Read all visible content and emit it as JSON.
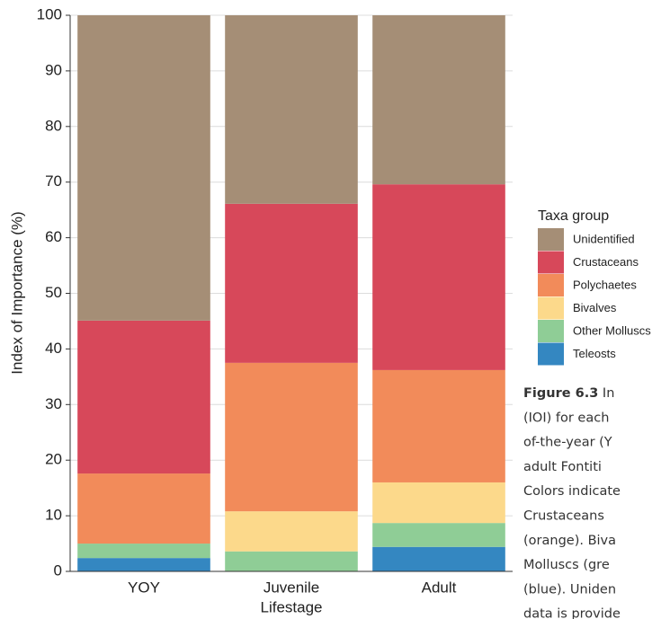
{
  "chart_data": {
    "type": "stacked_bar",
    "ylabel": "Index of Importance (%)",
    "xlabel": "Lifestage",
    "categories": [
      "YOY",
      "Juvenile",
      "Adult"
    ],
    "ylim": [
      0,
      100
    ],
    "yticks": [
      0,
      10,
      20,
      30,
      40,
      50,
      60,
      70,
      80,
      90,
      100
    ],
    "grid": true,
    "legend_title": "Taxa group",
    "legend_position": "right",
    "series": [
      {
        "name": "Teleosts",
        "color": "#3487c1",
        "values": [
          2.4,
          0,
          4.4
        ]
      },
      {
        "name": "Other Molluscs",
        "color": "#8fcd96",
        "values": [
          2.6,
          3.6,
          4.3
        ]
      },
      {
        "name": "Bivalves",
        "color": "#fcd98b",
        "values": [
          0,
          7.2,
          7.3
        ]
      },
      {
        "name": "Polychaetes",
        "color": "#f28b5a",
        "values": [
          12.6,
          26.7,
          20.2
        ]
      },
      {
        "name": "Crustaceans",
        "color": "#d7485a",
        "values": [
          27.5,
          28.6,
          33.4
        ]
      },
      {
        "name": "Unidentified",
        "color": "#a58e76",
        "values": [
          54.9,
          33.9,
          30.4
        ]
      }
    ]
  },
  "caption": {
    "label": "Figure 6.3",
    "lines": [
      " In",
      "(IOI) for each",
      "of-the-year (Y",
      "adult Fontiti",
      "Colors indicate",
      "Crustaceans",
      "(orange). Biva",
      "Molluscs (gre",
      "(blue). Uniden",
      "data is provide"
    ]
  }
}
